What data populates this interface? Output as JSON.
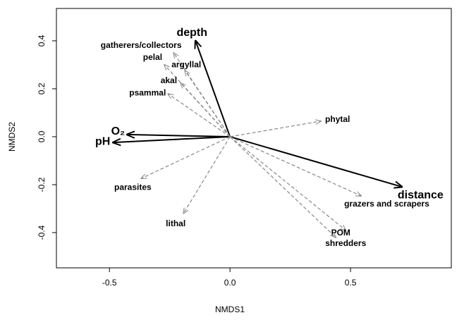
{
  "chart_data": {
    "type": "biplot",
    "x_label": "NMDS1",
    "y_label": "NMDS2",
    "xlim": [
      -0.72,
      0.918
    ],
    "ylim": [
      -0.547,
      0.535
    ],
    "xticks": [
      -0.5,
      {
        "value": 0,
        "label": "0.0"
      },
      0.5
    ],
    "yticks": [
      -0.4,
      -0.2,
      {
        "value": 0,
        "label": "0.0"
      },
      0.2,
      0.4
    ],
    "series": [
      {
        "color": "#000000",
        "style": "solid",
        "labels": [
          "depth",
          "O₂",
          "pH",
          "distance"
        ],
        "x": [
          -0.143,
          -0.427,
          -0.485,
          0.713
        ],
        "y": [
          0.4,
          0.009,
          -0.024,
          -0.209
        ]
      },
      {
        "color": "#888888",
        "style": "dashed",
        "labels": [
          "gatherers/collectors",
          "pelal",
          "argyllal",
          "akal",
          "psammal",
          "phytal",
          "parasites",
          "lithal",
          "grazers and scrapers",
          "POM",
          "shredders"
        ],
        "x": [
          -0.234,
          -0.272,
          -0.187,
          -0.205,
          -0.257,
          0.377,
          -0.368,
          -0.193,
          0.544,
          0.48,
          0.439
        ],
        "y": [
          0.35,
          0.3,
          0.276,
          0.224,
          0.179,
          0.065,
          -0.174,
          -0.32,
          -0.247,
          -0.39,
          -0.42
        ]
      }
    ]
  }
}
